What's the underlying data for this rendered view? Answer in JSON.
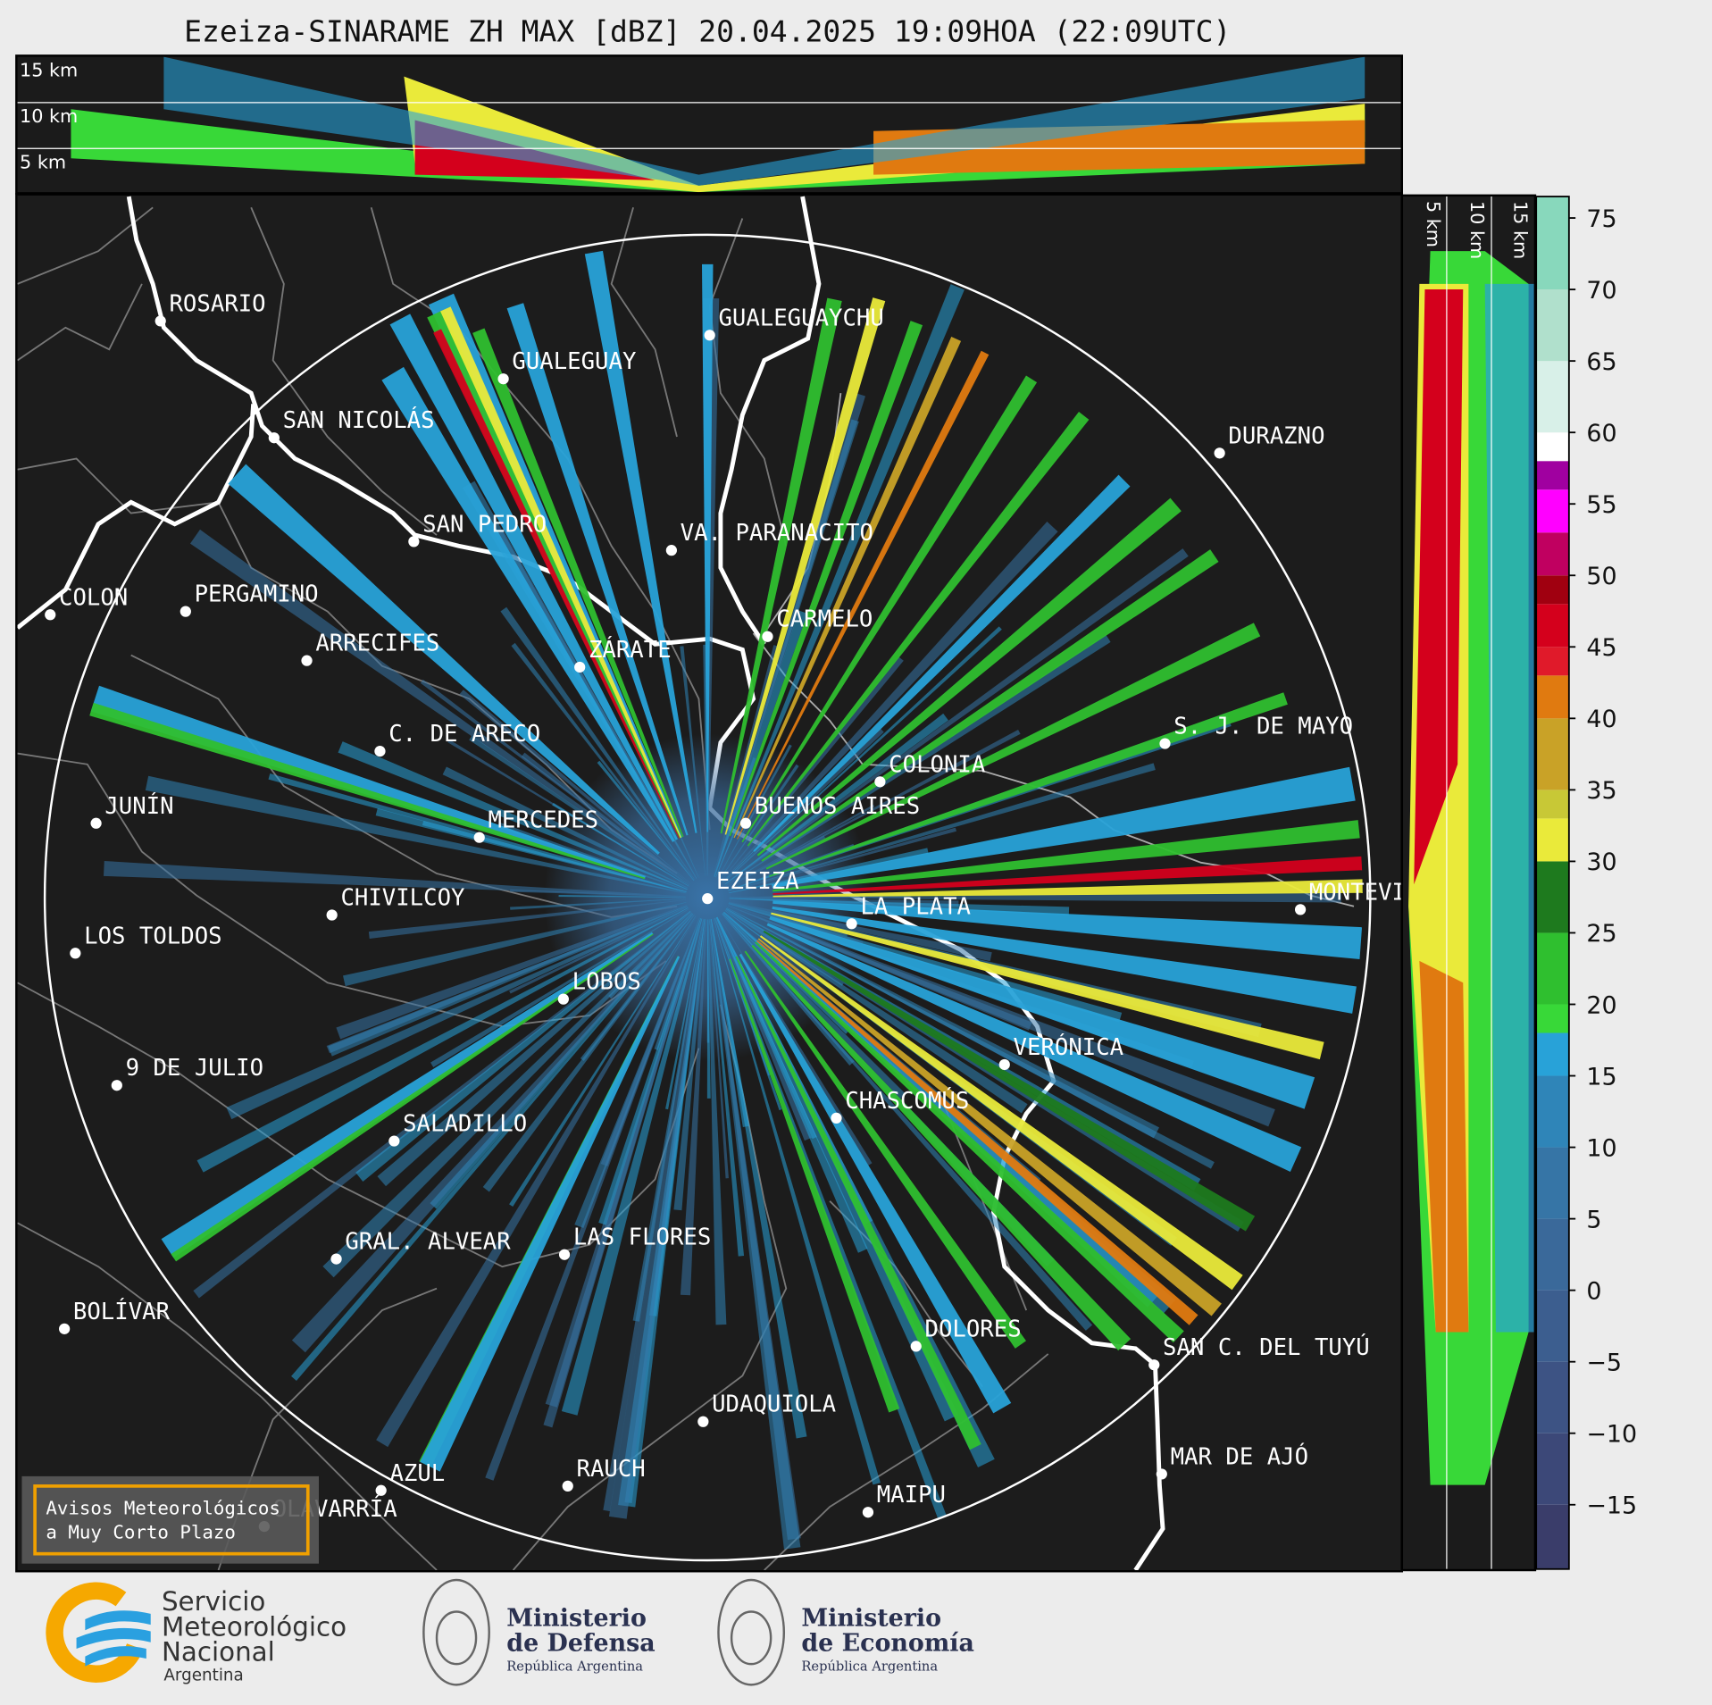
{
  "title": "Ezeiza-SINARAME ZH MAX [dBZ] 20.04.2025 19:09HOA (22:09UTC)",
  "cross_section": {
    "top_labels": [
      "15 km",
      "10 km",
      "5 km"
    ],
    "side_labels": [
      "5 km",
      "10 km",
      "15 km"
    ]
  },
  "cities": [
    "ROSARIO",
    "GUALEGUAYCHU",
    "GUALEGUAY",
    "SAN NICOLÁS",
    "DURAZNO",
    "SAN PEDRO",
    "VA. PARANACITO",
    "COLON",
    "PERGAMINO",
    "CARMELO",
    "ARRECIFES",
    "ZÁRATE",
    "C. DE ARECO",
    "S. J. DE MAYO",
    "COLONIA",
    "JUNÍN",
    "BUENOS AIRES",
    "MERCEDES",
    "EZEIZA",
    "MONTEVIDEO",
    "CHIVILCOY",
    "LA PLATA",
    "LOS TOLDOS",
    "LOBOS",
    "VERÓNICA",
    "9 DE JULIO",
    "CHASCOMÚS",
    "SALADILLO",
    "GRAL. ALVEAR",
    "LAS FLORES",
    "BOLÍVAR",
    "DOLORES",
    "SAN C. DEL TUYÚ",
    "UDAQUIOLA",
    "MAR DE AJÓ",
    "AZUL",
    "RAUCH",
    "OLAVARRÍA",
    "MAIPU"
  ],
  "colorbar": {
    "lim": [
      -19.5,
      76.5
    ],
    "ticks": [
      {
        "value": -15,
        "label": "−15"
      },
      {
        "value": -10,
        "label": "−10"
      },
      {
        "value": -5,
        "label": "−5"
      },
      0,
      5,
      10,
      15,
      20,
      25,
      30,
      35,
      40,
      45,
      50,
      55,
      60,
      65,
      70,
      75
    ],
    "bounds": [
      -19.5,
      -15,
      -10,
      -5,
      0,
      5,
      10,
      15,
      18,
      20,
      25,
      30,
      33,
      35,
      40,
      43,
      45,
      48,
      50,
      53,
      56,
      58,
      60,
      65,
      70,
      76.5
    ],
    "colors": [
      "#3a3d6a",
      "#3c4878",
      "#3d5384",
      "#3c5e8f",
      "#3a699a",
      "#3675a6",
      "#2f85b8",
      "#28a2d8",
      "#38d838",
      "#2fbf2f",
      "#1e7a1e",
      "#eaea3a",
      "#c8c836",
      "#c9a227",
      "#e07a10",
      "#e01a2a",
      "#d4001c",
      "#a00010",
      "#c00060",
      "#ff00ff",
      "#a000a0",
      "#ffffff",
      "#d8f0e8",
      "#b0e0cc",
      "#88d8bc"
    ]
  },
  "notice": [
    "Avisos Meteorológicos",
    "a Muy Corto Plazo"
  ],
  "logos": [
    {
      "lines": [
        "Servicio",
        "Meteorológico",
        "Nacional",
        "Argentina"
      ]
    },
    {
      "lines": [
        "Ministerio",
        "de Defensa",
        "República Argentina"
      ]
    },
    {
      "lines": [
        "Ministerio",
        "de Economía",
        "República Argentina"
      ]
    }
  ]
}
